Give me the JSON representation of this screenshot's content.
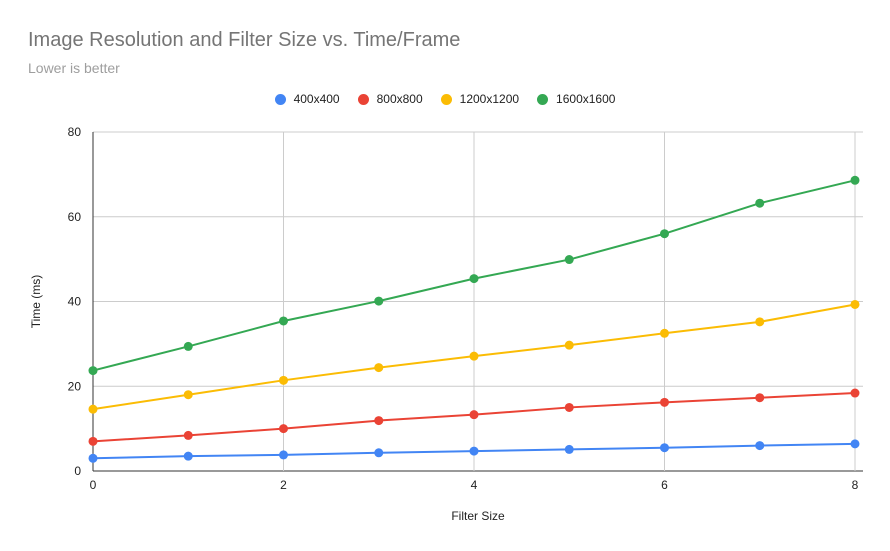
{
  "chart_data": {
    "type": "line",
    "title": "Image Resolution and Filter Size vs. Time/Frame",
    "subtitle": "Lower is better",
    "xlabel": "Filter Size",
    "ylabel": "Time (ms)",
    "x": [
      0,
      1,
      2,
      3,
      4,
      5,
      6,
      7,
      8
    ],
    "xlim": [
      0,
      8
    ],
    "ylim": [
      0,
      80
    ],
    "x_ticks": [
      "0",
      "2",
      "4",
      "6",
      "8"
    ],
    "y_ticks": [
      "0",
      "20",
      "40",
      "60",
      "80"
    ],
    "grid": true,
    "legend_position": "top",
    "series": [
      {
        "name": "400x400",
        "color": "#4285f4",
        "values": [
          3.0,
          3.5,
          3.8,
          4.3,
          4.7,
          5.1,
          5.5,
          6.0,
          6.4
        ]
      },
      {
        "name": "800x800",
        "color": "#ea4335",
        "values": [
          7.0,
          8.4,
          10.0,
          11.9,
          13.3,
          15.0,
          16.2,
          17.3,
          18.4
        ]
      },
      {
        "name": "1200x1200",
        "color": "#fbbc04",
        "values": [
          14.6,
          18.0,
          21.4,
          24.4,
          27.1,
          29.7,
          32.5,
          35.2,
          39.3
        ]
      },
      {
        "name": "1600x1600",
        "color": "#34a853",
        "values": [
          23.7,
          29.4,
          35.4,
          40.1,
          45.4,
          49.9,
          56.0,
          63.2,
          68.6
        ]
      }
    ]
  }
}
